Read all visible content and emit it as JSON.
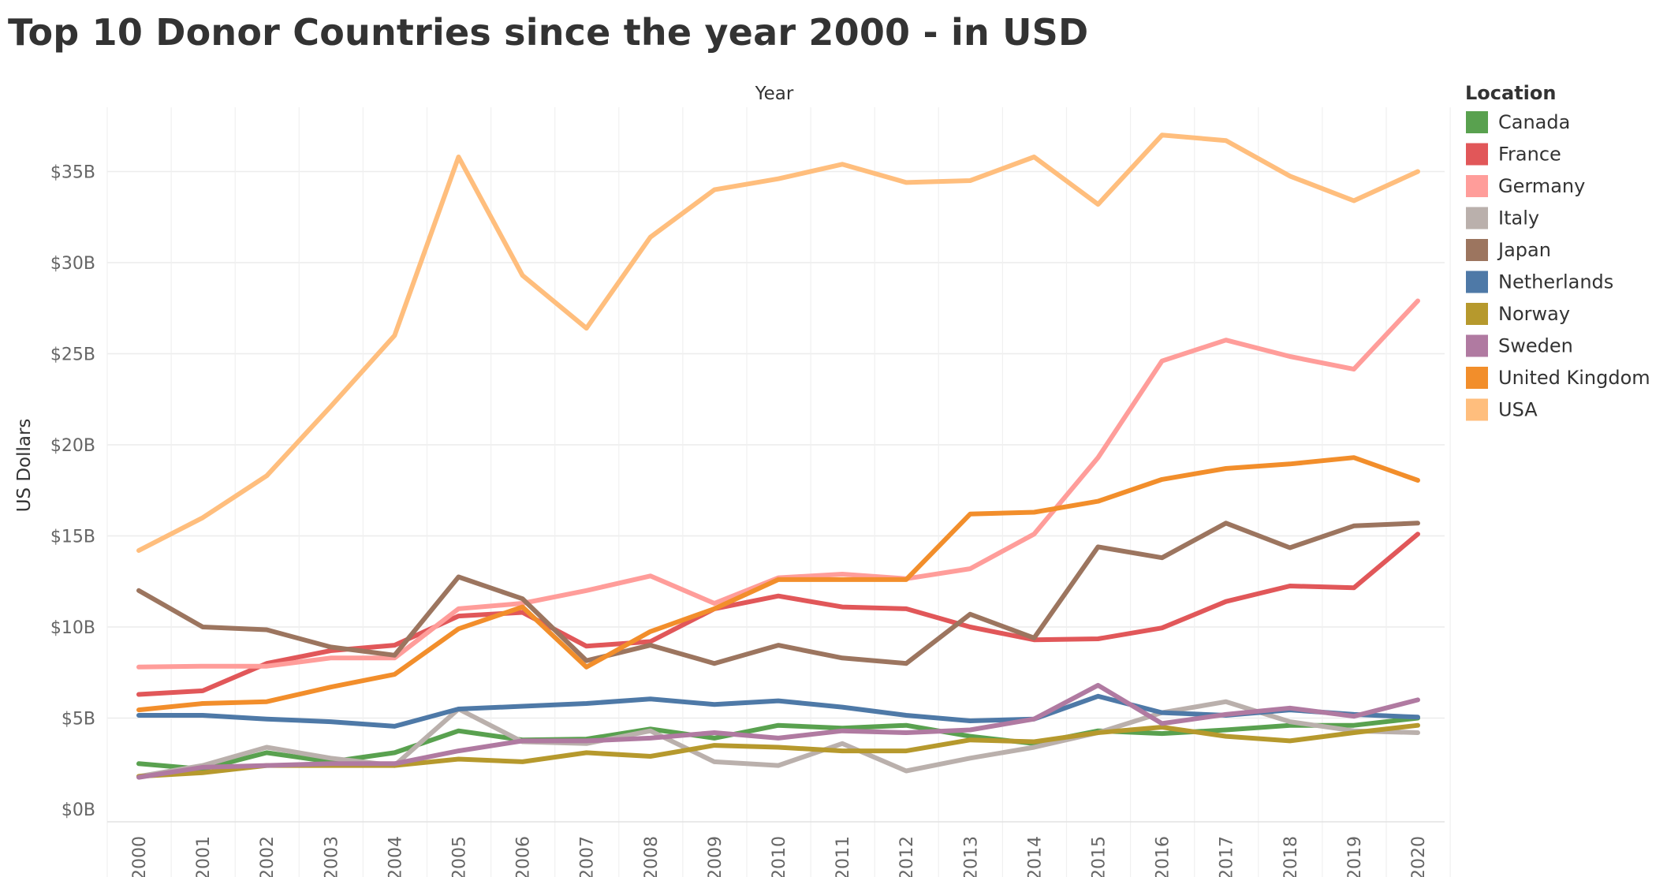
{
  "chart_data": {
    "type": "line",
    "title": "Top 10 Donor Countries since the year 2000 - in USD",
    "xlabel": "Year",
    "ylabel": "US Dollars",
    "x": [
      2000,
      2001,
      2002,
      2003,
      2004,
      2005,
      2006,
      2007,
      2008,
      2009,
      2010,
      2011,
      2012,
      2013,
      2014,
      2015,
      2016,
      2017,
      2018,
      2019,
      2020
    ],
    "ylim": [
      0,
      38
    ],
    "y_unit": "billion USD",
    "y_ticks": [
      0,
      5,
      10,
      15,
      20,
      25,
      30,
      35
    ],
    "y_tick_labels": [
      "$0B",
      "$5B",
      "$10B",
      "$15B",
      "$20B",
      "$25B",
      "$30B",
      "$35B"
    ],
    "x_tick_labels": [
      "2000",
      "2001",
      "2002",
      "2003",
      "2004",
      "2005",
      "2006",
      "2007",
      "2008",
      "2009",
      "2010",
      "2011",
      "2012",
      "2013",
      "2014",
      "2015",
      "2016",
      "2017",
      "2018",
      "2019",
      "2020"
    ],
    "grid": true,
    "legend": {
      "title": "Location",
      "placement": "right"
    },
    "series": [
      {
        "name": "Canada",
        "color": "#59a14f",
        "values": [
          2.5,
          2.2,
          3.1,
          2.6,
          3.1,
          4.3,
          3.8,
          3.85,
          4.4,
          3.9,
          4.6,
          4.45,
          4.6,
          4.0,
          3.6,
          4.3,
          4.15,
          4.35,
          4.6,
          4.6,
          5.0
        ]
      },
      {
        "name": "France",
        "color": "#e15759",
        "values": [
          6.3,
          6.5,
          8.0,
          8.7,
          9.0,
          10.6,
          10.8,
          8.95,
          9.2,
          11.0,
          11.7,
          11.1,
          11.0,
          10.0,
          9.3,
          9.35,
          9.95,
          11.4,
          12.25,
          12.15,
          15.1
        ]
      },
      {
        "name": "Germany",
        "color": "#ff9d9a",
        "values": [
          7.8,
          7.85,
          7.85,
          8.3,
          8.3,
          11.0,
          11.3,
          12.0,
          12.8,
          11.3,
          12.7,
          12.9,
          12.65,
          13.2,
          15.1,
          19.3,
          24.6,
          25.75,
          24.85,
          24.15,
          27.9
        ]
      },
      {
        "name": "Italy",
        "color": "#bab0ac",
        "values": [
          1.8,
          2.4,
          3.4,
          2.8,
          2.4,
          5.5,
          3.7,
          3.6,
          4.3,
          2.6,
          2.4,
          3.6,
          2.1,
          2.8,
          3.4,
          4.2,
          5.3,
          5.9,
          4.8,
          4.3,
          4.2
        ]
      },
      {
        "name": "Japan",
        "color": "#9c755f",
        "values": [
          12.0,
          10.0,
          9.85,
          8.9,
          8.45,
          12.75,
          11.55,
          8.15,
          9.0,
          8.0,
          9.0,
          8.3,
          8.0,
          10.7,
          9.4,
          14.4,
          13.8,
          15.7,
          14.35,
          15.55,
          15.7
        ]
      },
      {
        "name": "Netherlands",
        "color": "#4e79a7",
        "values": [
          5.15,
          5.15,
          4.95,
          4.8,
          4.55,
          5.5,
          5.65,
          5.8,
          6.05,
          5.75,
          5.95,
          5.6,
          5.15,
          4.85,
          4.95,
          6.2,
          5.3,
          5.15,
          5.45,
          5.2,
          5.05
        ]
      },
      {
        "name": "Norway",
        "color": "#b6992d",
        "values": [
          1.8,
          2.0,
          2.4,
          2.4,
          2.4,
          2.75,
          2.6,
          3.1,
          2.9,
          3.5,
          3.4,
          3.2,
          3.2,
          3.8,
          3.7,
          4.2,
          4.5,
          4.0,
          3.75,
          4.2,
          4.6
        ]
      },
      {
        "name": "Sweden",
        "color": "#b07aa1",
        "values": [
          1.75,
          2.3,
          2.4,
          2.5,
          2.5,
          3.2,
          3.75,
          3.75,
          3.9,
          4.2,
          3.9,
          4.3,
          4.2,
          4.35,
          4.95,
          6.8,
          4.7,
          5.2,
          5.55,
          5.1,
          6.0
        ]
      },
      {
        "name": "United Kingdom",
        "color": "#f28e2b",
        "values": [
          5.45,
          5.8,
          5.9,
          6.7,
          7.4,
          9.9,
          11.1,
          7.8,
          9.75,
          11.0,
          12.6,
          12.6,
          12.6,
          16.2,
          16.3,
          16.9,
          18.1,
          18.7,
          18.95,
          19.3,
          18.05
        ]
      },
      {
        "name": "USA",
        "color": "#ffbe7d",
        "values": [
          14.2,
          16.0,
          18.3,
          22.1,
          26.0,
          35.8,
          29.3,
          26.4,
          31.4,
          34.0,
          34.6,
          35.4,
          34.4,
          34.5,
          35.8,
          33.2,
          37.0,
          36.7,
          34.75,
          33.4,
          35.0
        ]
      }
    ]
  }
}
